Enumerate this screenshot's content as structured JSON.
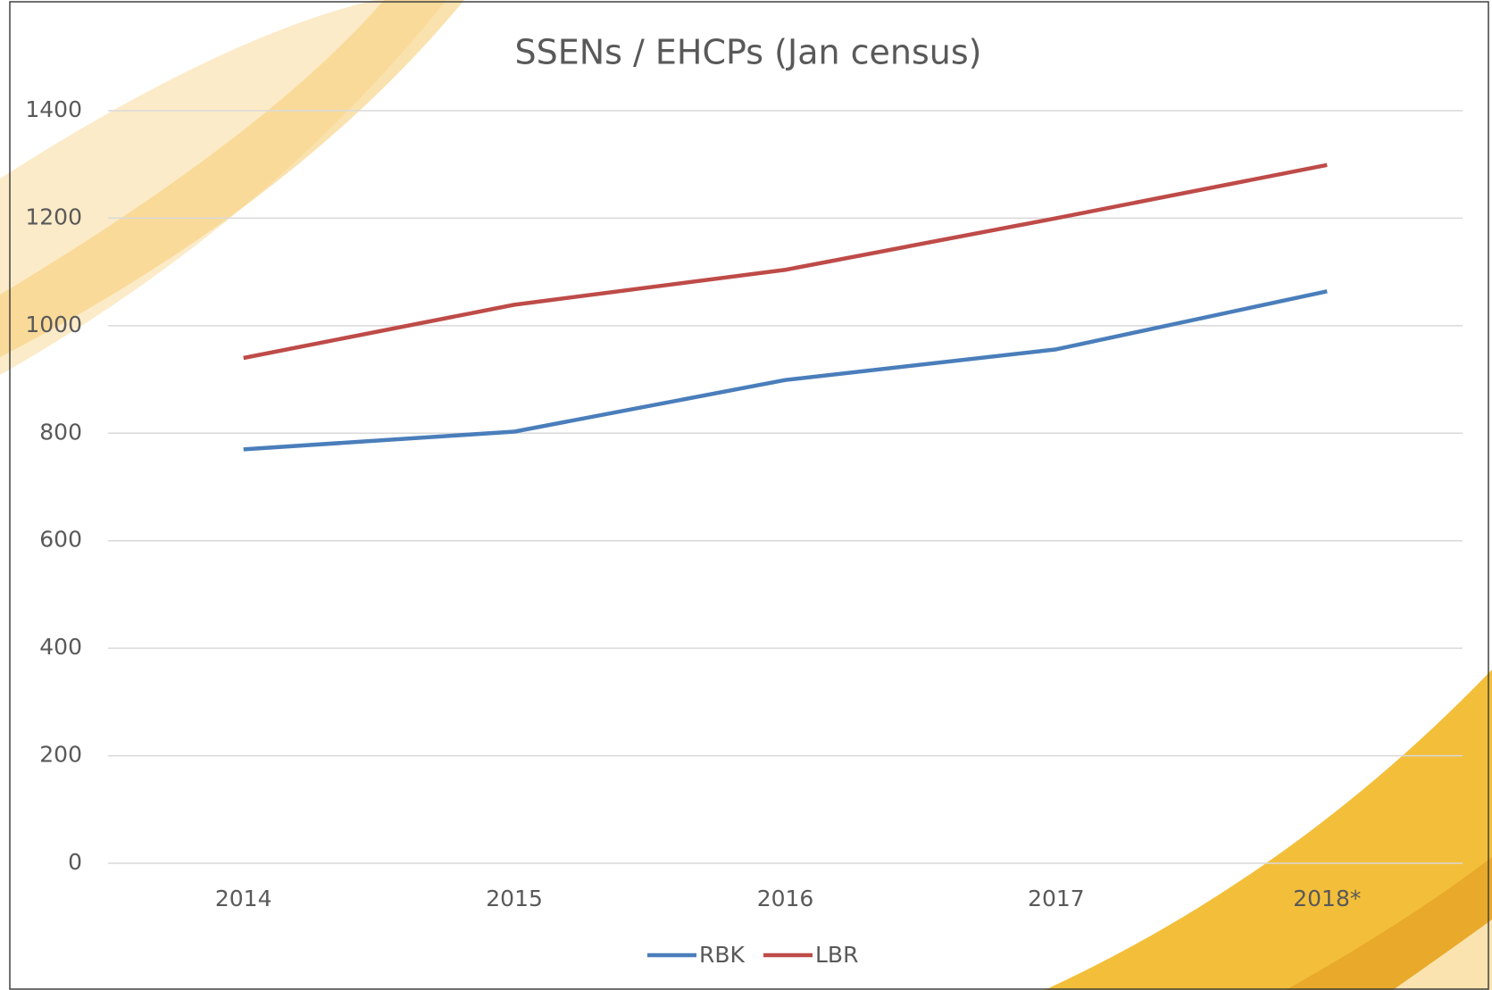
{
  "chart_data": {
    "type": "line",
    "title": "SSENs / EHCPs (Jan census)",
    "categories": [
      "2014",
      "2015",
      "2016",
      "2017",
      "2018*"
    ],
    "series": [
      {
        "name": "RBK",
        "color": "#4a7ebb",
        "values": [
          770,
          803,
          899,
          956,
          1064
        ]
      },
      {
        "name": "LBR",
        "color": "#be4b48",
        "values": [
          940,
          1039,
          1104,
          1200,
          1299
        ]
      }
    ],
    "ylim": [
      0,
      1400
    ],
    "yticks": [
      0,
      200,
      400,
      600,
      800,
      1000,
      1200,
      1400
    ],
    "grid": true,
    "legend": "bottom"
  }
}
